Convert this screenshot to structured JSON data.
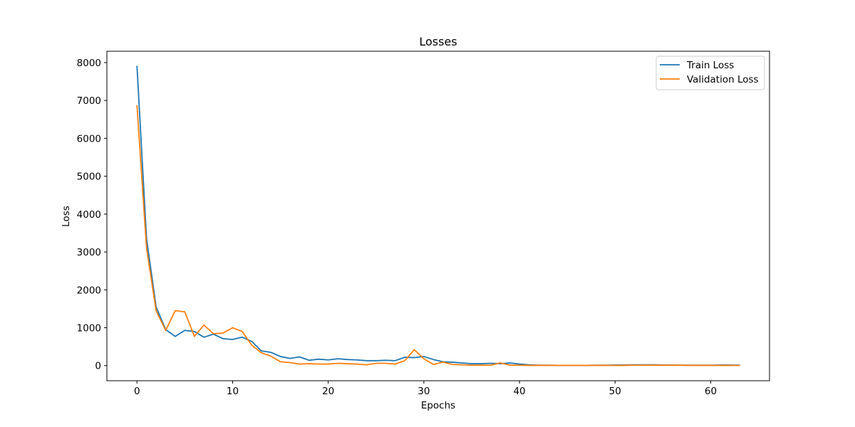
{
  "chart_data": {
    "type": "line",
    "title": "Losses",
    "xlabel": "Epochs",
    "ylabel": "Loss",
    "xlim": [
      -3.15,
      66.15
    ],
    "ylim": [
      -400,
      8300
    ],
    "xticks": [
      0,
      10,
      20,
      30,
      40,
      50,
      60
    ],
    "yticks": [
      0,
      1000,
      2000,
      3000,
      4000,
      5000,
      6000,
      7000,
      8000
    ],
    "grid": false,
    "legend_position": "top-right",
    "x": [
      0,
      1,
      2,
      3,
      4,
      5,
      6,
      7,
      8,
      9,
      10,
      11,
      12,
      13,
      14,
      15,
      16,
      17,
      18,
      19,
      20,
      21,
      22,
      23,
      24,
      25,
      26,
      27,
      28,
      29,
      30,
      31,
      32,
      33,
      34,
      35,
      36,
      37,
      38,
      39,
      40,
      41,
      42,
      43,
      44,
      45,
      46,
      47,
      48,
      49,
      50,
      51,
      52,
      53,
      54,
      55,
      56,
      57,
      58,
      59,
      60,
      61,
      62,
      63
    ],
    "series": [
      {
        "name": "Train Loss",
        "color": "#1f77b4",
        "values": [
          7900,
          3350,
          1550,
          950,
          770,
          930,
          900,
          750,
          830,
          710,
          690,
          750,
          640,
          390,
          350,
          240,
          190,
          230,
          140,
          170,
          150,
          180,
          160,
          150,
          130,
          130,
          140,
          130,
          220,
          210,
          240,
          160,
          100,
          90,
          70,
          50,
          50,
          60,
          50,
          70,
          40,
          20,
          10,
          10,
          5,
          5,
          5,
          5,
          10,
          10,
          15,
          15,
          20,
          20,
          20,
          15,
          15,
          10,
          10,
          10,
          10,
          15,
          15,
          10
        ]
      },
      {
        "name": "Validation Loss",
        "color": "#ff7f0e",
        "values": [
          6860,
          3100,
          1450,
          930,
          1450,
          1420,
          770,
          1070,
          840,
          860,
          1000,
          900,
          540,
          340,
          250,
          100,
          80,
          40,
          50,
          40,
          40,
          60,
          50,
          40,
          20,
          60,
          60,
          40,
          130,
          420,
          180,
          30,
          90,
          30,
          20,
          10,
          10,
          10,
          70,
          10,
          10,
          5,
          5,
          5,
          5,
          5,
          5,
          5,
          5,
          5,
          5,
          5,
          10,
          10,
          10,
          10,
          10,
          10,
          5,
          5,
          5,
          5,
          5,
          5
        ]
      }
    ]
  }
}
